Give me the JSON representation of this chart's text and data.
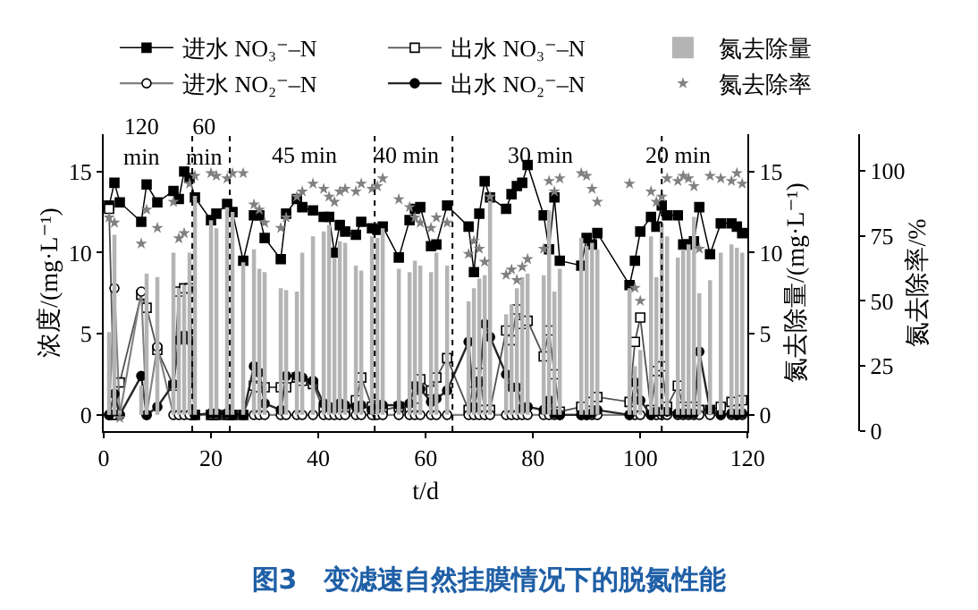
{
  "chart_data": {
    "type": "line",
    "title": "图3　变滤速自然挂膜情况下的脱氮性能",
    "xlabel": "t/d",
    "ylabel": "浓度/(mg·L⁻¹)",
    "y2label": "氮去除量/(mg·L⁻¹)",
    "y3label": "氮去除率/%",
    "x": [
      1,
      2,
      3,
      7,
      8,
      10,
      13,
      14,
      15,
      16,
      17,
      20,
      21,
      23,
      24,
      26,
      28,
      29,
      30,
      33,
      34,
      36,
      37,
      39,
      41,
      42,
      43,
      44,
      45,
      47,
      48,
      50,
      51,
      52,
      55,
      57,
      58,
      59,
      61,
      62,
      64,
      68,
      69,
      70,
      71,
      72,
      75,
      76,
      77,
      78,
      79,
      82,
      83,
      84,
      85,
      89,
      90,
      91,
      92,
      98,
      99,
      100,
      102,
      103,
      104,
      105,
      107,
      108,
      109,
      110,
      111,
      113,
      115,
      117,
      118,
      119
    ],
    "xlim": [
      0,
      120
    ],
    "xticks": [
      0,
      20,
      40,
      60,
      80,
      100,
      120
    ],
    "ylim": [
      -1,
      17.3
    ],
    "yticks": [
      0,
      5,
      10,
      15
    ],
    "y2lim": [
      -1,
      17.3
    ],
    "y2ticks": [
      0,
      5,
      10,
      15
    ],
    "y3lim": [
      0,
      114
    ],
    "y3ticks": [
      0,
      25,
      50,
      75,
      100
    ],
    "grid": false,
    "legend": "top",
    "series": [
      {
        "name": "进水 NO₃⁻–N",
        "color": "#000000",
        "marker": "square",
        "values": [
          12.9,
          14.3,
          13.1,
          11.9,
          14.2,
          13.1,
          13.8,
          13.3,
          15.0,
          14.6,
          13.4,
          12.0,
          12.4,
          13.0,
          12.5,
          9.5,
          12.3,
          12.3,
          10.9,
          9.6,
          12.4,
          13.3,
          12.8,
          12.6,
          12.2,
          12.2,
          10.0,
          11.7,
          11.3,
          11.1,
          11.9,
          11.5,
          11.4,
          11.6,
          9.7,
          12.0,
          12.7,
          12.8,
          10.4,
          10.5,
          12.9,
          11.6,
          8.8,
          12.4,
          14.4,
          13.4,
          12.7,
          13.6,
          14.1,
          14.3,
          15.4,
          12.3,
          10.2,
          13.4,
          9.5,
          9.2,
          10.9,
          10.5,
          11.2,
          8.0,
          9.5,
          11.3,
          12.2,
          11.6,
          12.9,
          12.3,
          12.3,
          10.5,
          10.5,
          10.7,
          12.8,
          9.9,
          11.8,
          11.8,
          11.6,
          11.2
        ]
      },
      {
        "name": "出水 NO₃⁻–N",
        "color": "#ffffff",
        "marker": "square",
        "values": [
          12.7,
          0,
          2.0,
          7.4,
          6.6,
          4.0,
          1.8,
          7.6,
          7.8,
          7.8,
          0,
          0,
          0,
          0,
          0,
          0,
          1.8,
          1.7,
          1.7,
          1.7,
          1.7,
          2.3,
          2.1,
          1.9,
          0.3,
          0.3,
          0.3,
          0.2,
          0.2,
          0.9,
          2.3,
          0.5,
          0.6,
          0.3,
          0.5,
          0.4,
          1.0,
          2.2,
          1.5,
          2.3,
          3.5,
          0.3,
          2.0,
          2.6,
          0.3,
          0.3,
          5.2,
          4.6,
          6.5,
          5.6,
          5.8,
          3.6,
          5.2,
          2.5,
          0.2,
          0.5,
          0.5,
          0.8,
          1.1,
          0.8,
          4.5,
          6.0,
          0.3,
          2.7,
          3.0,
          0.5,
          1.8,
          0.5,
          0.3,
          0.5,
          0.3,
          0.3,
          0.5,
          0.8,
          0.3,
          0.9
        ]
      },
      {
        "type": "bar",
        "name": "氮去除量",
        "color": "#b4b4b4",
        "axis": "y2",
        "values": [
          5.1,
          11.1,
          0.3,
          1.8,
          8.7,
          8.5,
          10.0,
          7.8,
          8.0,
          10.0,
          13.5,
          12.0,
          11.5,
          12.8,
          12.5,
          9.4,
          10.2,
          9.0,
          8.8,
          7.8,
          7.7,
          7.6,
          10.0,
          11.0,
          11.3,
          11.7,
          9.7,
          10.7,
          10.6,
          9.2,
          8.9,
          11.0,
          10.9,
          11.5,
          9.0,
          8.8,
          9.5,
          9.2,
          8.8,
          10.0,
          9.2,
          7.0,
          7.8,
          8.4,
          8.6,
          13.2,
          6.2,
          6.8,
          7.8,
          8.5,
          8.7,
          8.6,
          12.6,
          7.6,
          9.0,
          10.9,
          10.4,
          10.6,
          10.2,
          7.8,
          3.0,
          4.0,
          11.0,
          8.5,
          11.8,
          11.0,
          9.7,
          10.2,
          10.5,
          12.2,
          7.5,
          8.3,
          10.0,
          10.5,
          10.3,
          10.0
        ]
      },
      {
        "name": "进水 NO₂⁻–N",
        "color": "#ffffff",
        "marker": "circle",
        "values": [
          0,
          7.8,
          0,
          7.6,
          0,
          4.2,
          0,
          0,
          0,
          0,
          0,
          0,
          0,
          0,
          0,
          0,
          0,
          0,
          0,
          0,
          0,
          0,
          0,
          0,
          0,
          0,
          0,
          0,
          0,
          0,
          0,
          0,
          0,
          0,
          0,
          0,
          0,
          0,
          0,
          0,
          0,
          0,
          0,
          0,
          0,
          0,
          0,
          0,
          0,
          0,
          0,
          0,
          0,
          0,
          0,
          0,
          0,
          0,
          0,
          0,
          0,
          0,
          0,
          0,
          0,
          0,
          0,
          0,
          0,
          0,
          0,
          0,
          0,
          0,
          0,
          0
        ]
      },
      {
        "name": "出水 NO₂⁻–N",
        "color": "#000000",
        "marker": "circle",
        "values": [
          0,
          1.3,
          0,
          2.4,
          0,
          0.5,
          1.9,
          4.6,
          4.9,
          4.6,
          0,
          0.1,
          0.1,
          0.1,
          0,
          0,
          3.0,
          2.6,
          0.7,
          0.3,
          2.4,
          2.4,
          2.3,
          2.1,
          0.7,
          0.5,
          0.4,
          0.7,
          0.6,
          0.5,
          0.6,
          0.3,
          0.6,
          0.6,
          0.6,
          0.7,
          1.8,
          1.6,
          0.8,
          1.0,
          1.5,
          4.5,
          0.5,
          2.0,
          5.6,
          4.8,
          2.5,
          1.7,
          1.7,
          0.4,
          0.5,
          0.3,
          0.9,
          0.1,
          0,
          0,
          0,
          0.1,
          0.3,
          0,
          2.0,
          0.9,
          0,
          0.2,
          0.2,
          0.2,
          0.1,
          0.1,
          0.1,
          0.1,
          3.9,
          0.3,
          0,
          0.1,
          0,
          0.1
        ]
      },
      {
        "type": "scatter",
        "name": "氮去除率",
        "color": "#808080",
        "marker": "star",
        "axis": "y3",
        "values": [
          82,
          80,
          5,
          72,
          85,
          78,
          88,
          74,
          76,
          95,
          98,
          99,
          98,
          97,
          99,
          99,
          87,
          85,
          80,
          78,
          82,
          90,
          92,
          95,
          93,
          90,
          88,
          92,
          93,
          92,
          95,
          93,
          94,
          97,
          89,
          86,
          82,
          80,
          78,
          82,
          80,
          68,
          73,
          70,
          65,
          90,
          60,
          62,
          58,
          63,
          66,
          70,
          96,
          92,
          97,
          99,
          98,
          93,
          88,
          95,
          55,
          50,
          92,
          88,
          90,
          97,
          96,
          98,
          97,
          94,
          70,
          98,
          97,
          96,
          99,
          95
        ]
      }
    ],
    "ref_lines": [
      {
        "axis": "x",
        "value": 16.5,
        "line_style": "dotted",
        "color": "#000000"
      },
      {
        "axis": "x",
        "value": 23.5,
        "line_style": "dotted",
        "color": "#000000"
      },
      {
        "axis": "x",
        "value": 50.5,
        "line_style": "dotted",
        "color": "#000000"
      },
      {
        "axis": "x",
        "value": 65,
        "line_style": "dotted",
        "color": "#000000"
      },
      {
        "axis": "x",
        "value": 104,
        "line_style": "dotted",
        "color": "#000000"
      }
    ],
    "annotations": [
      "120\nmin",
      "60\nmin",
      "45 min",
      "40 min",
      "30 min",
      "20 min"
    ]
  }
}
